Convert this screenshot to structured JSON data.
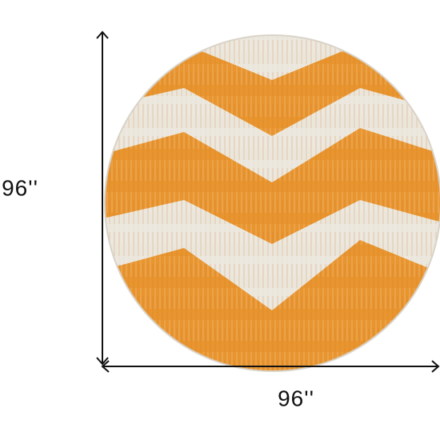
{
  "dimensions": {
    "height": "96''",
    "width": "96''"
  }
}
